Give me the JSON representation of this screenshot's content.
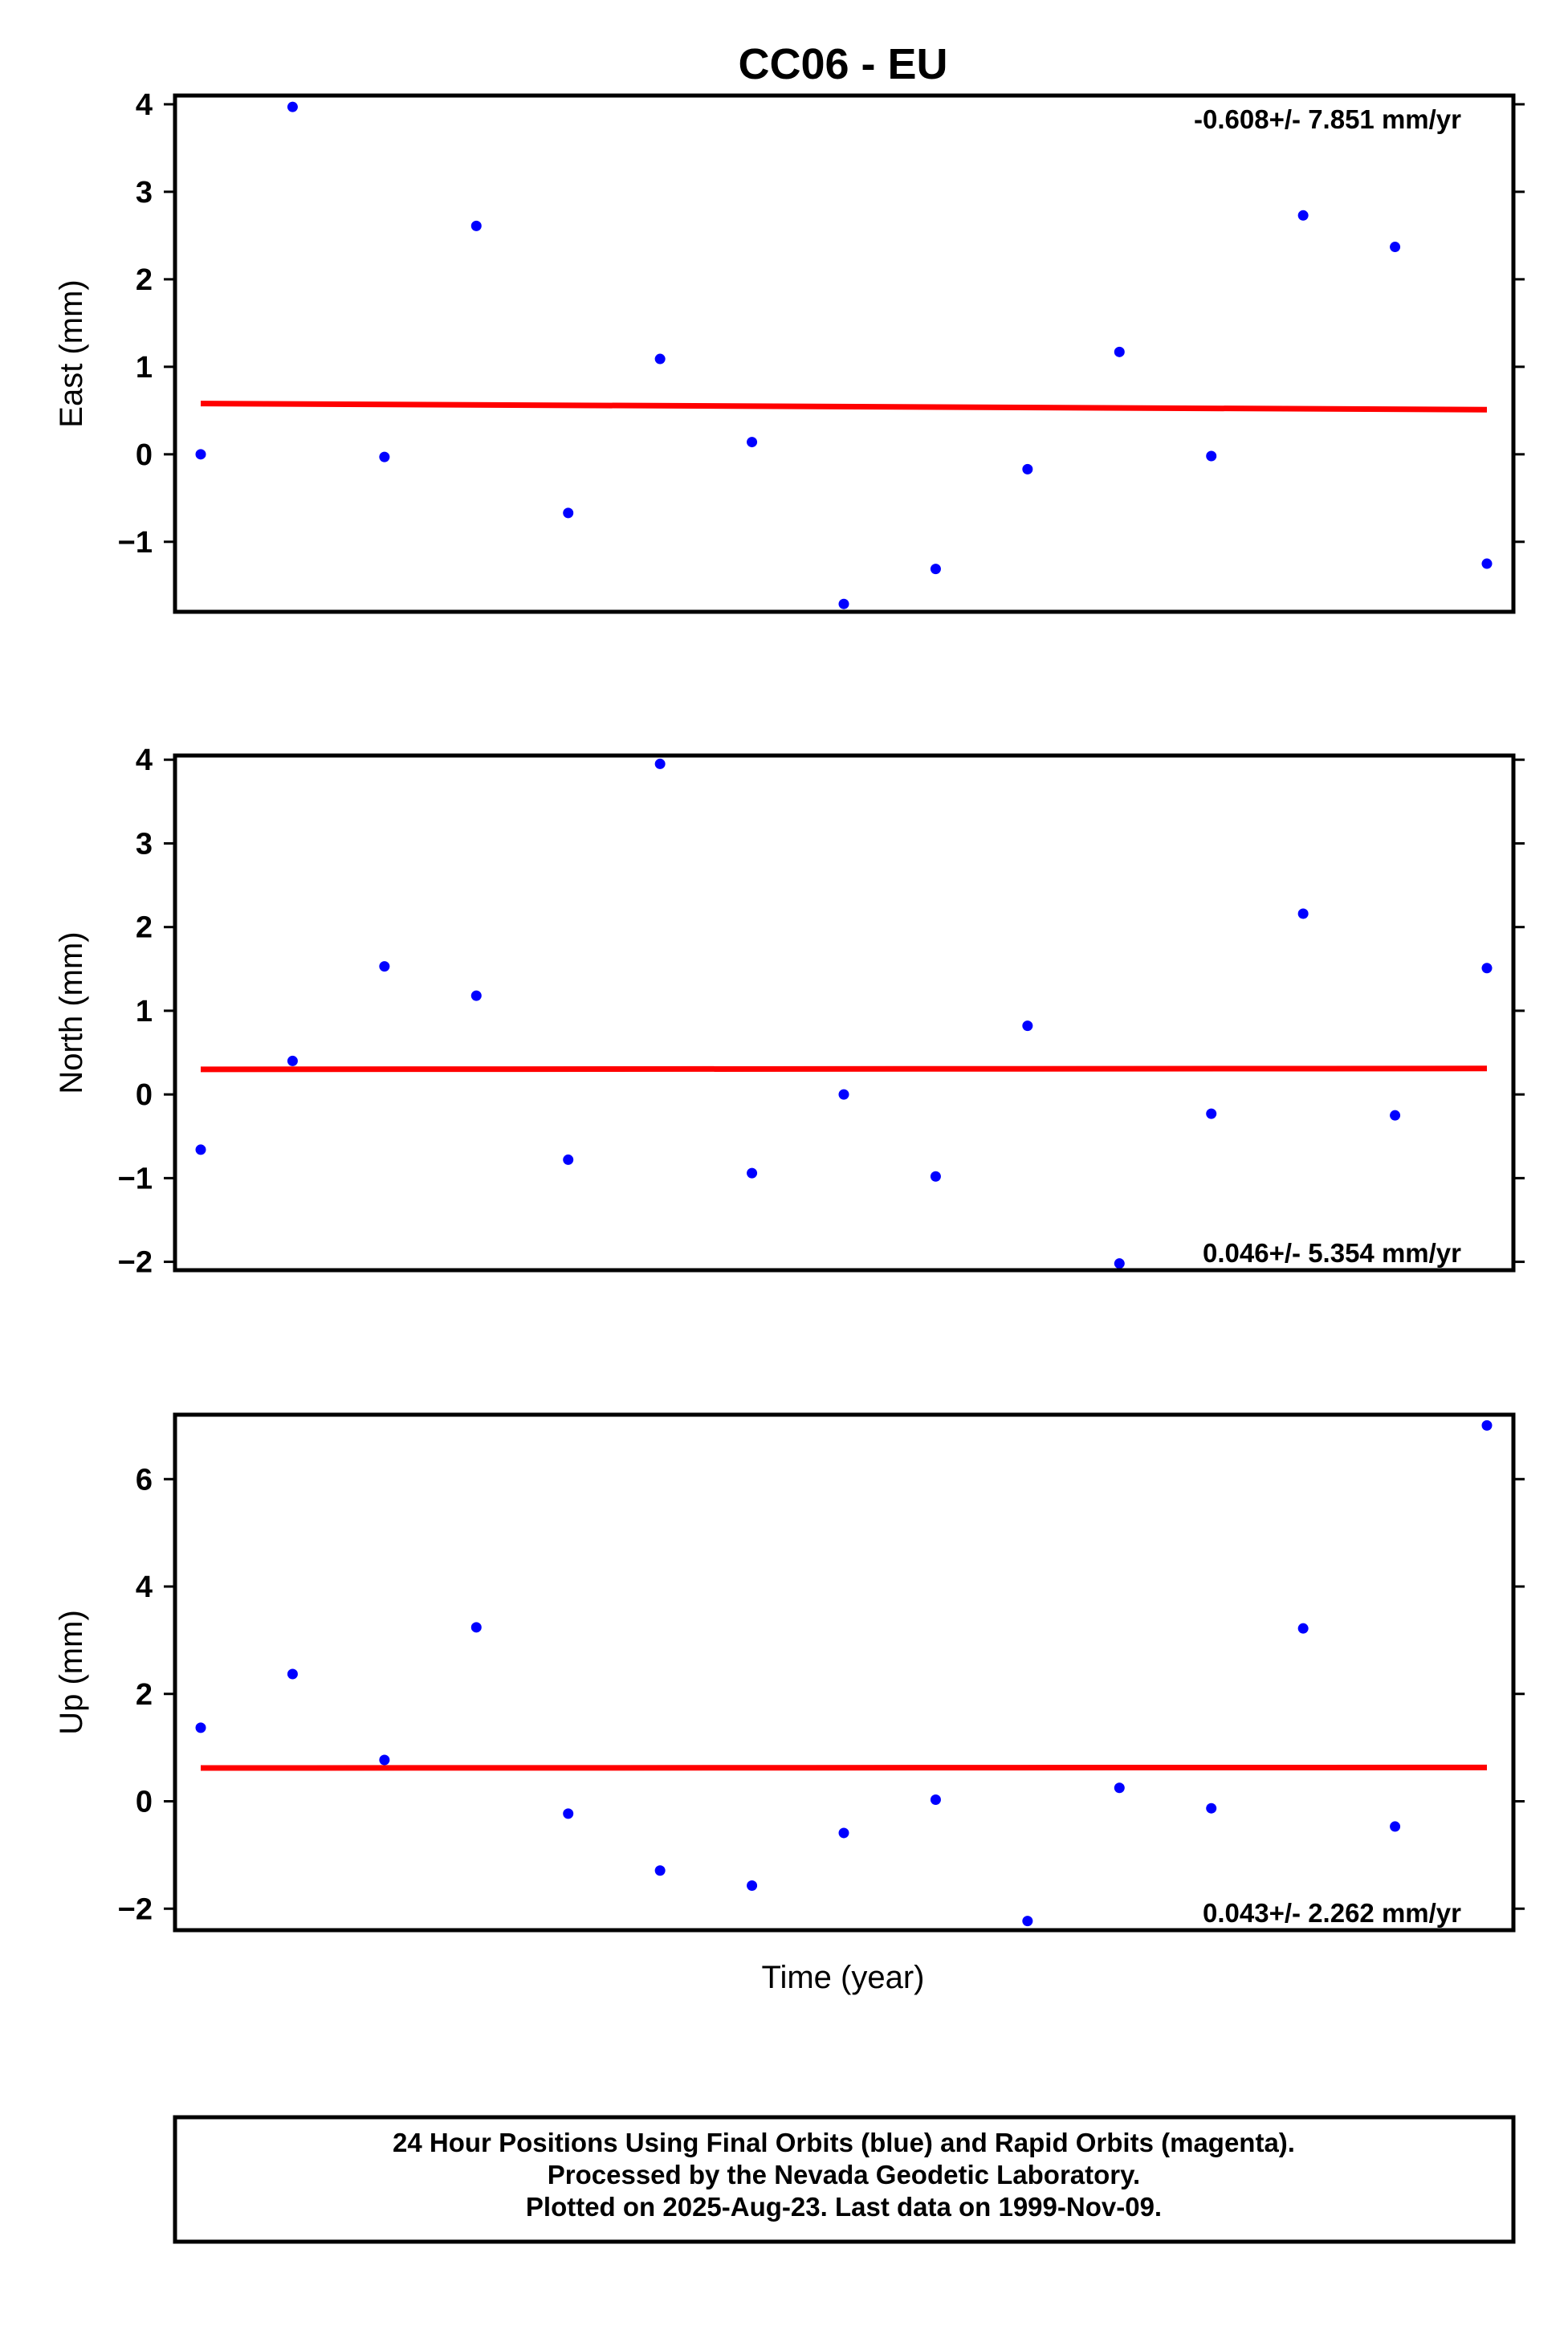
{
  "chart_data": {
    "title": "CC06 - EU",
    "xlabel": "Time (year)",
    "colors": {
      "points": "#0000ff",
      "trend": "#ff0000",
      "frame": "#000000"
    },
    "panels": [
      {
        "type": "scatter",
        "ylabel": "East (mm)",
        "ylim": [
          -1.8,
          4.1
        ],
        "yticks": [
          "4",
          "3",
          "2",
          "1",
          "0",
          "−1"
        ],
        "ytick_values": [
          4,
          3,
          2,
          1,
          0,
          -1
        ],
        "rate_text": "-0.608+/- 7.851 mm/yr",
        "rate_position": "top-right",
        "points": [
          0.0,
          3.97,
          -0.03,
          2.61,
          -0.67,
          1.09,
          0.14,
          -1.71,
          -1.31,
          -0.17,
          1.17,
          -0.02,
          2.73,
          2.37,
          -1.25
        ],
        "trend": [
          0.58,
          0.51
        ]
      },
      {
        "type": "scatter",
        "ylabel": "North (mm)",
        "ylim": [
          -2.1,
          4.05
        ],
        "yticks": [
          "4",
          "3",
          "2",
          "1",
          "0",
          "−1",
          "−2"
        ],
        "ytick_values": [
          4,
          3,
          2,
          1,
          0,
          -1,
          -2
        ],
        "rate_text": "0.046+/- 5.354 mm/yr",
        "rate_position": "bottom-right",
        "points": [
          -0.66,
          0.4,
          1.53,
          1.18,
          -0.78,
          3.95,
          -0.94,
          0.0,
          -0.98,
          0.82,
          -2.02,
          -0.23,
          2.16,
          -0.25,
          1.51
        ],
        "trend": [
          0.3,
          0.31
        ]
      },
      {
        "type": "scatter",
        "ylabel": "Up (mm)",
        "ylim": [
          -2.4,
          7.2
        ],
        "yticks": [
          "6",
          "4",
          "2",
          "0",
          "−2"
        ],
        "ytick_values": [
          6,
          4,
          2,
          0,
          -2
        ],
        "rate_text": "0.043+/- 2.262 mm/yr",
        "rate_position": "bottom-right",
        "points": [
          1.37,
          2.37,
          0.77,
          3.24,
          -0.23,
          -1.29,
          -1.57,
          -0.59,
          0.03,
          -2.23,
          0.25,
          -0.13,
          3.22,
          -0.47,
          7.0
        ],
        "trend": [
          0.62,
          0.63
        ]
      }
    ]
  },
  "footer": {
    "line1": "24 Hour Positions Using Final Orbits (blue) and Rapid Orbits (magenta).",
    "line2": "Processed by the Nevada Geodetic Laboratory.",
    "line3": "Plotted on 2025-Aug-23. Last data on 1999-Nov-09."
  }
}
